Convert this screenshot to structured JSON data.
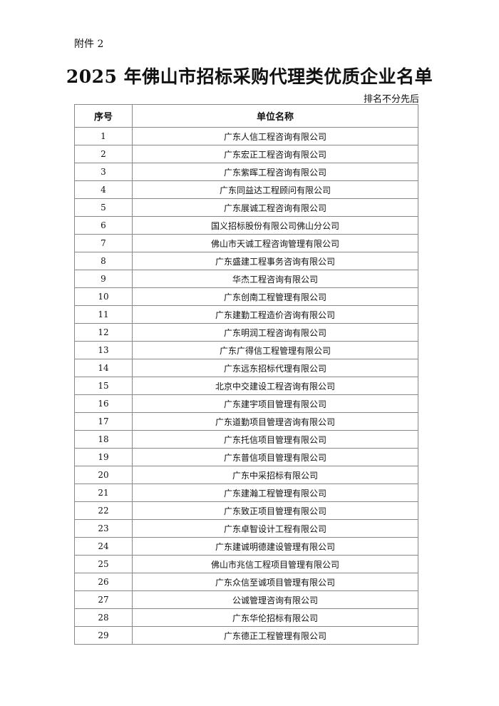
{
  "attachment_label": "附件 2",
  "title": "2025 年佛山市招标采购代理类优质企业名单",
  "note": "排名不分先后",
  "table": {
    "headers": [
      "序号",
      "单位名称"
    ],
    "rows": [
      [
        "1",
        "广东人信工程咨询有限公司"
      ],
      [
        "2",
        "广东宏正工程咨询有限公司"
      ],
      [
        "3",
        "广东紫晖工程咨询有限公司"
      ],
      [
        "4",
        "广东同益达工程顾问有限公司"
      ],
      [
        "5",
        "广东展诚工程咨询有限公司"
      ],
      [
        "6",
        "国义招标股份有限公司佛山分公司"
      ],
      [
        "7",
        "佛山市天诚工程咨询管理有限公司"
      ],
      [
        "8",
        "广东盛建工程事务咨询有限公司"
      ],
      [
        "9",
        "华杰工程咨询有限公司"
      ],
      [
        "10",
        "广东创南工程管理有限公司"
      ],
      [
        "11",
        "广东建勤工程造价咨询有限公司"
      ],
      [
        "12",
        "广东明润工程咨询有限公司"
      ],
      [
        "13",
        "广东广得信工程管理有限公司"
      ],
      [
        "14",
        "广东远东招标代理有限公司"
      ],
      [
        "15",
        "北京中交建设工程咨询有限公司"
      ],
      [
        "16",
        "广东建宇项目管理有限公司"
      ],
      [
        "17",
        "广东道勤项目管理咨询有限公司"
      ],
      [
        "18",
        "广东托信项目管理有限公司"
      ],
      [
        "19",
        "广东普信项目管理有限公司"
      ],
      [
        "20",
        "广东中采招标有限公司"
      ],
      [
        "21",
        "广东建瀚工程管理有限公司"
      ],
      [
        "22",
        "广东致正项目管理有限公司"
      ],
      [
        "23",
        "广东卓智设计工程有限公司"
      ],
      [
        "24",
        "广东建诚明德建设管理有限公司"
      ],
      [
        "25",
        "佛山市兆信工程项目管理有限公司"
      ],
      [
        "26",
        "广东众信至诚项目管理有限公司"
      ],
      [
        "27",
        "公诚管理咨询有限公司"
      ],
      [
        "28",
        "广东华伦招标有限公司"
      ],
      [
        "29",
        "广东德正工程管理有限公司"
      ]
    ]
  }
}
